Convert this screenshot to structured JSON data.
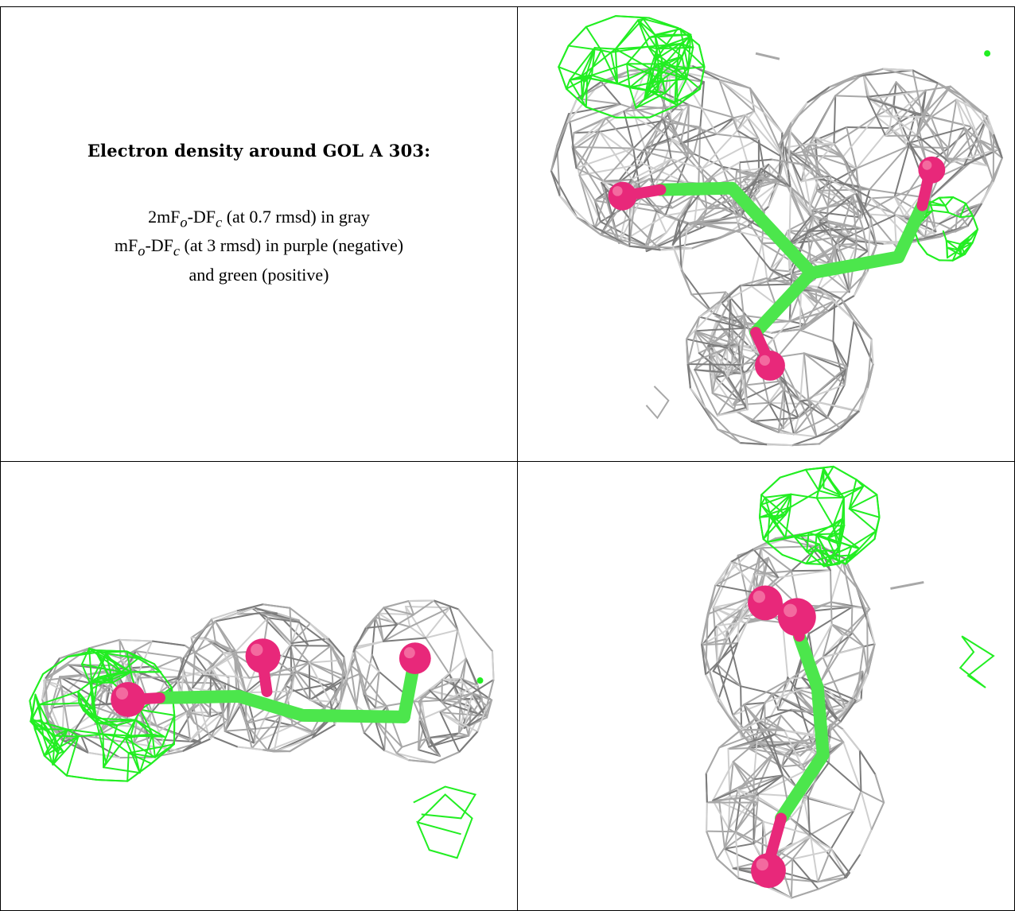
{
  "heading": "Electron density around GOL A 303:",
  "legend": {
    "line1_prefix": "2mF",
    "line1_sub1": "o",
    "line1_mid": "-DF",
    "line1_sub2": "c",
    "line1_suffix": " (at 0.7 rmsd) in gray",
    "line2_prefix": "mF",
    "line2_sub1": "o",
    "line2_mid": "-DF",
    "line2_sub2": "c",
    "line2_suffix": " (at 3 rmsd) in purple (negative)",
    "line3": "and green (positive)"
  },
  "colors": {
    "mesh_gray": "#a8a8a8",
    "mesh_light": "#cfcfcf",
    "mesh_dark": "#7c7c7c",
    "positive_green": "#22ee22",
    "bond_green": "#4ce64c",
    "oxygen_magenta": "#e8287a",
    "border": "#000000"
  },
  "panels": [
    {
      "view": "top-right",
      "content": "glycerol-front-view"
    },
    {
      "view": "bottom-left",
      "content": "glycerol-side-view"
    },
    {
      "view": "bottom-right",
      "content": "glycerol-top-view"
    }
  ]
}
